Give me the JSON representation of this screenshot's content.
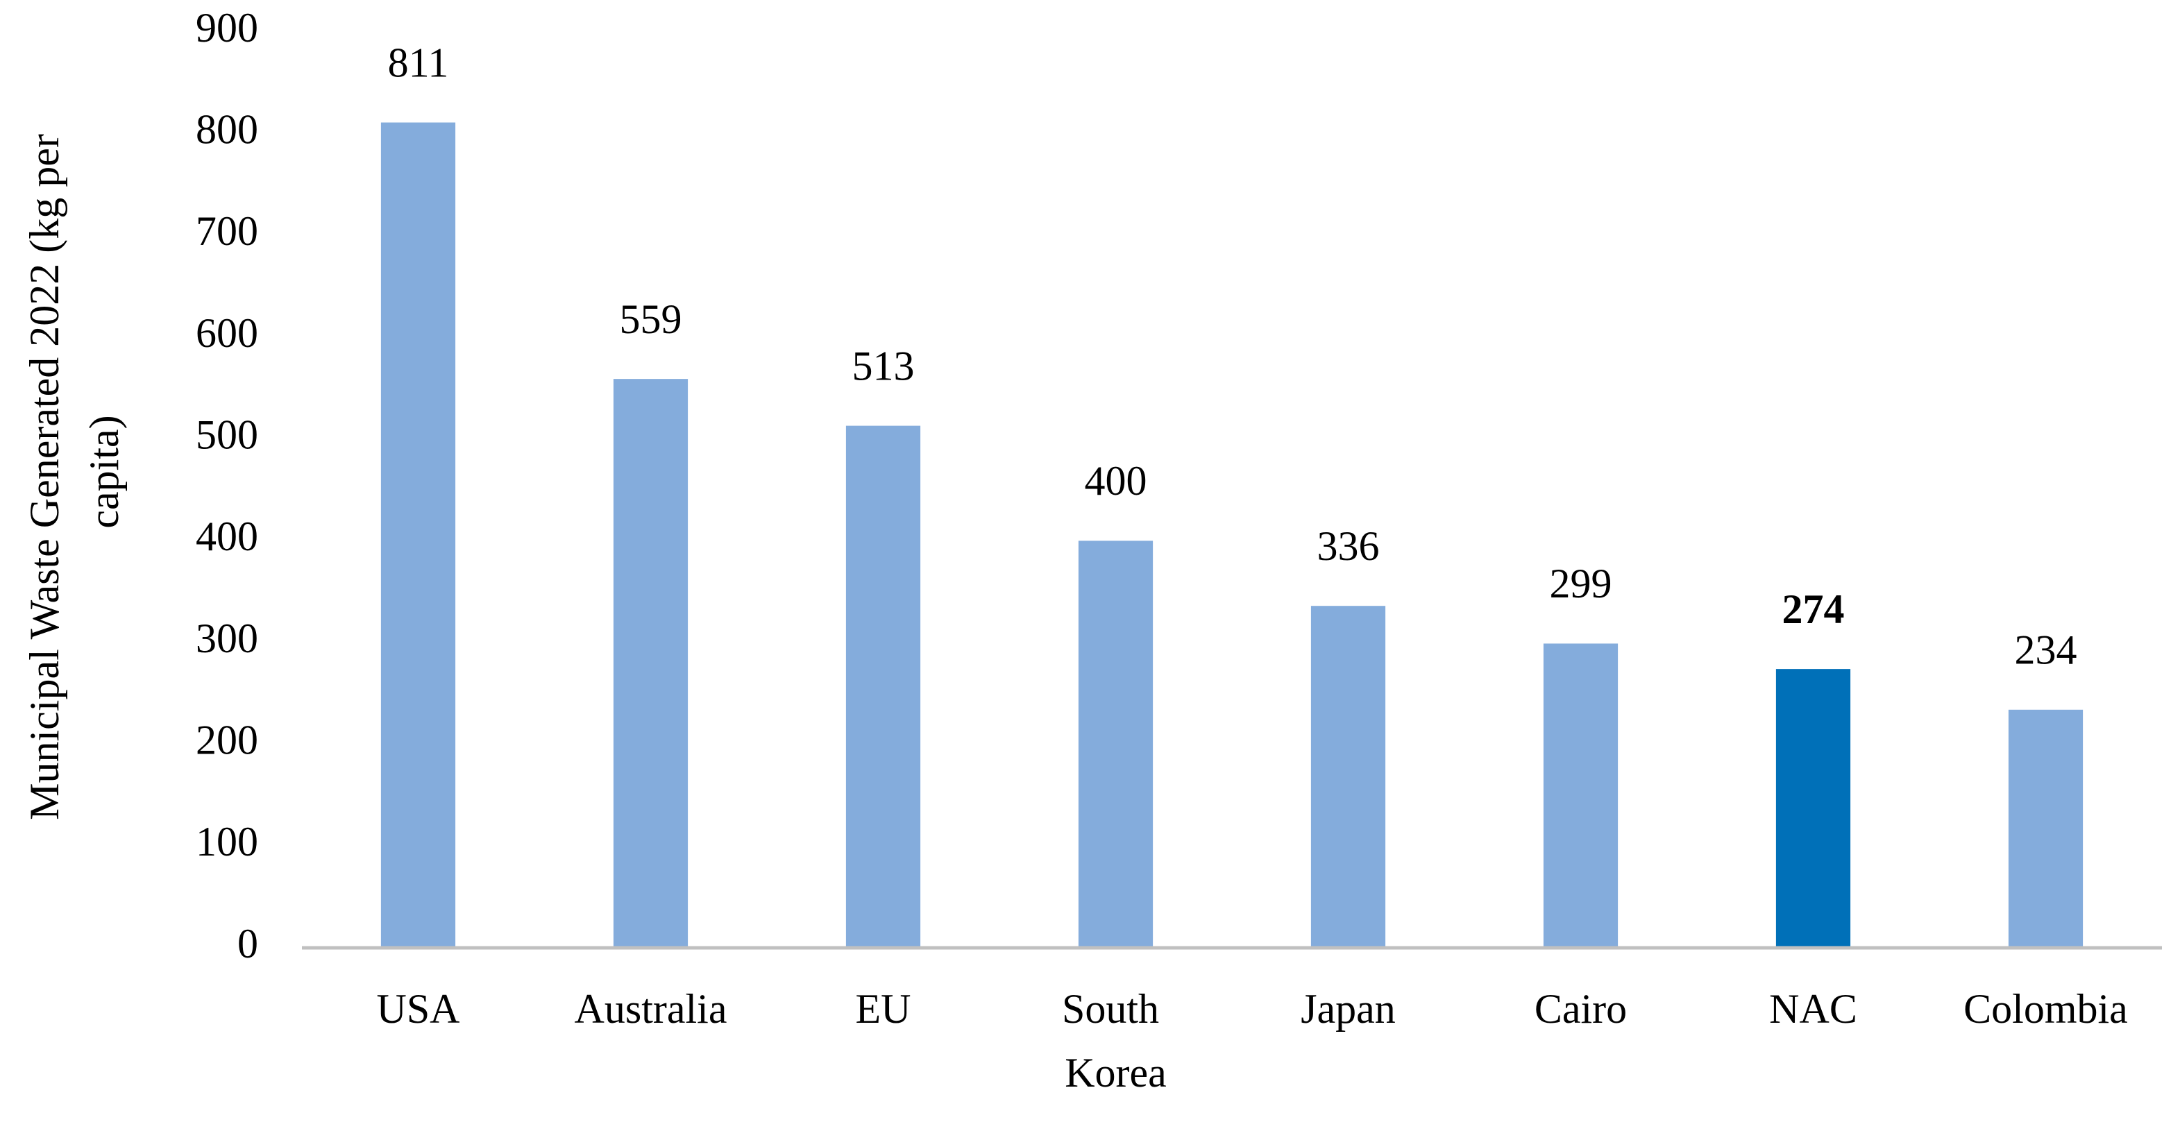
{
  "chart_data": {
    "type": "bar",
    "y_label": "Municipal Waste Generated 2022 (kg per capita)",
    "categories": [
      "USA",
      "Australia",
      "EU",
      "South Korea",
      "Japan",
      "Cairo",
      "NAC",
      "Colombia"
    ],
    "values": [
      811,
      559,
      513,
      400,
      336,
      299,
      274,
      234
    ],
    "colors": [
      "#84acdc",
      "#84acdc",
      "#84acdc",
      "#84acdc",
      "#84acdc",
      "#84acdc",
      "#0070b8",
      "#84acdc"
    ],
    "bold_labels": [
      false,
      false,
      false,
      false,
      false,
      false,
      true,
      false
    ],
    "ylim": [
      0,
      900
    ],
    "yticks": [
      0,
      100,
      200,
      300,
      400,
      500,
      600,
      700,
      800,
      900
    ],
    "grid": false,
    "axis_color": "#c0c0c0"
  }
}
